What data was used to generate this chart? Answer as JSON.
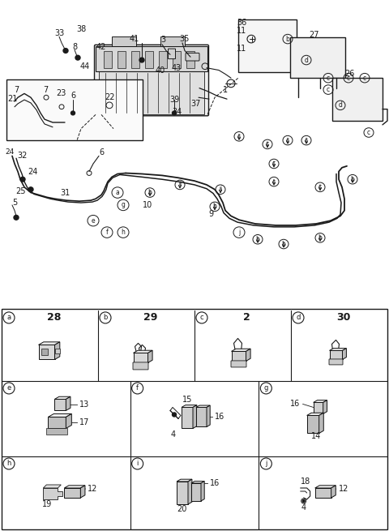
{
  "bg_color": "#ffffff",
  "line_color": "#1a1a1a",
  "figure_width": 4.8,
  "figure_height": 6.55,
  "dpi": 100,
  "schematic_split": 0.42,
  "grid_cols_row1": 4,
  "grid_cols_row2": 3,
  "row1_items": [
    [
      "a",
      "28"
    ],
    [
      "b",
      "29"
    ],
    [
      "c",
      "2"
    ],
    [
      "d",
      "30"
    ]
  ],
  "row2_items": [
    [
      "e",
      ""
    ],
    [
      "f",
      ""
    ],
    [
      "g",
      ""
    ]
  ],
  "row3_items": [
    [
      "h",
      ""
    ],
    [
      "i",
      ""
    ],
    [
      "j",
      ""
    ]
  ]
}
